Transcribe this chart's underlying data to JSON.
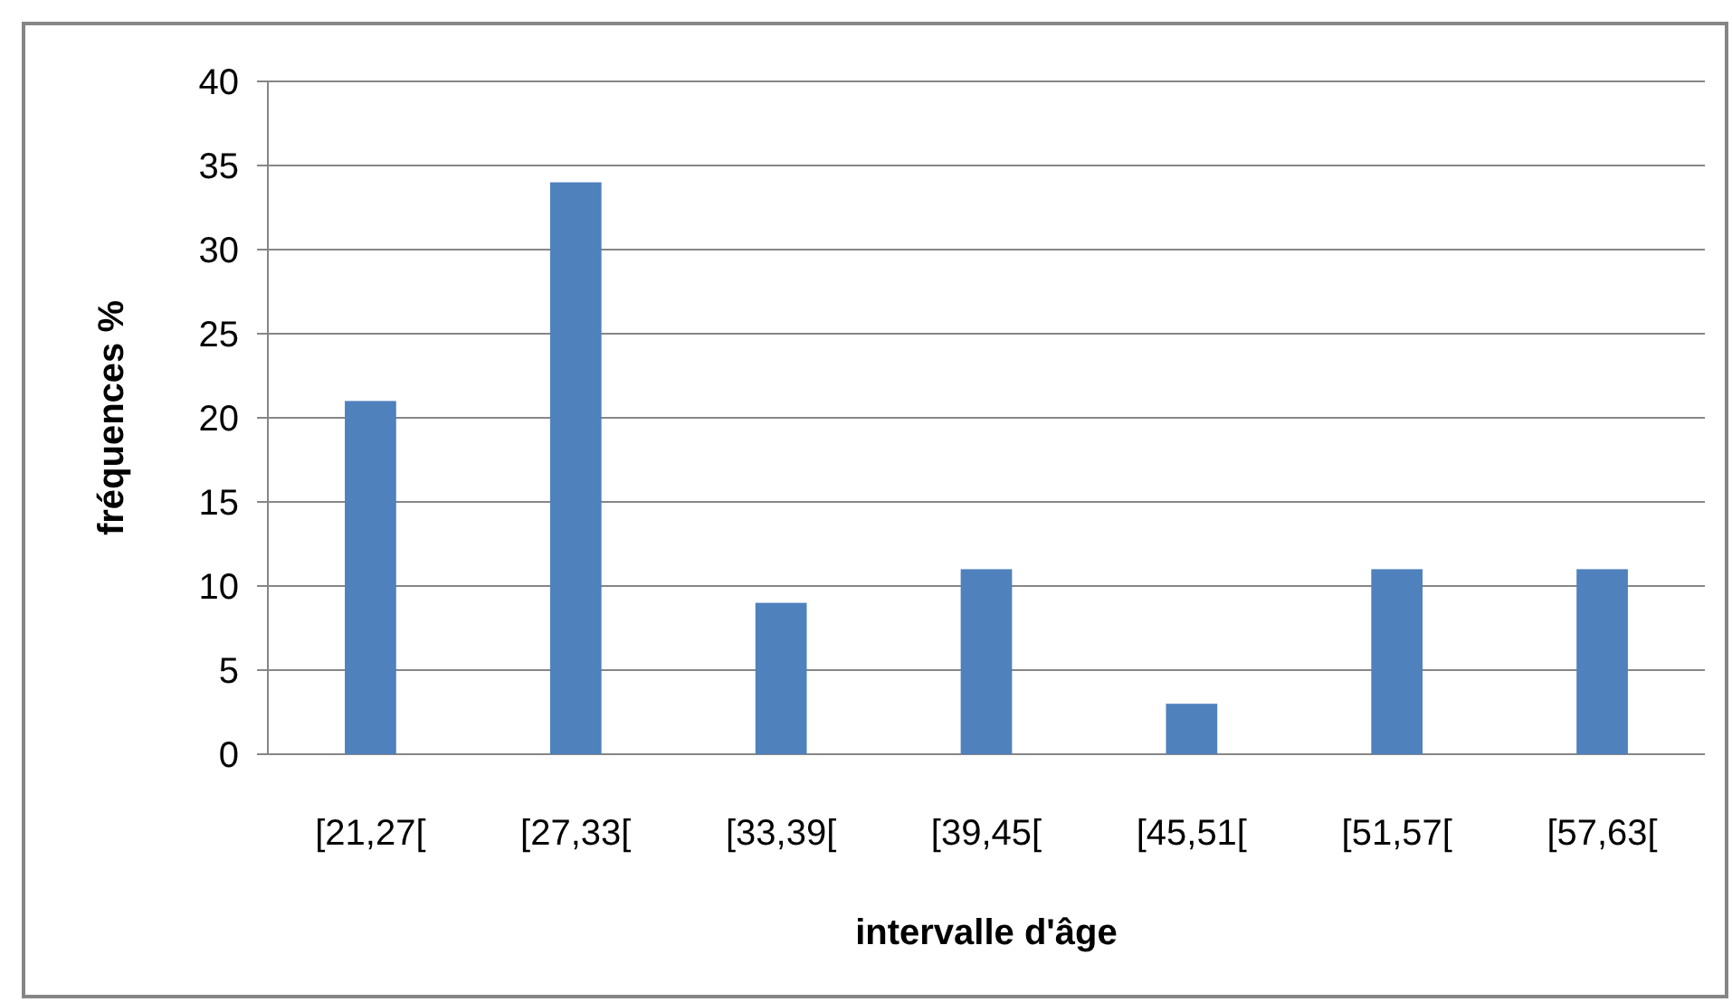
{
  "chart_data": {
    "type": "bar",
    "xlabel": "intervalle d'âge",
    "ylabel": "fréquences %",
    "categories": [
      "[21,27[",
      "[27,33[",
      "[33,39[",
      "[39,45[",
      "[45,51[",
      "[51,57[",
      "[57,63["
    ],
    "values": [
      21,
      34,
      9,
      11,
      3,
      11,
      11
    ],
    "color": "#4f81bd",
    "ylim": [
      0,
      40
    ],
    "yticks": [
      0,
      5,
      10,
      15,
      20,
      25,
      30,
      35,
      40
    ],
    "grid": "y"
  }
}
